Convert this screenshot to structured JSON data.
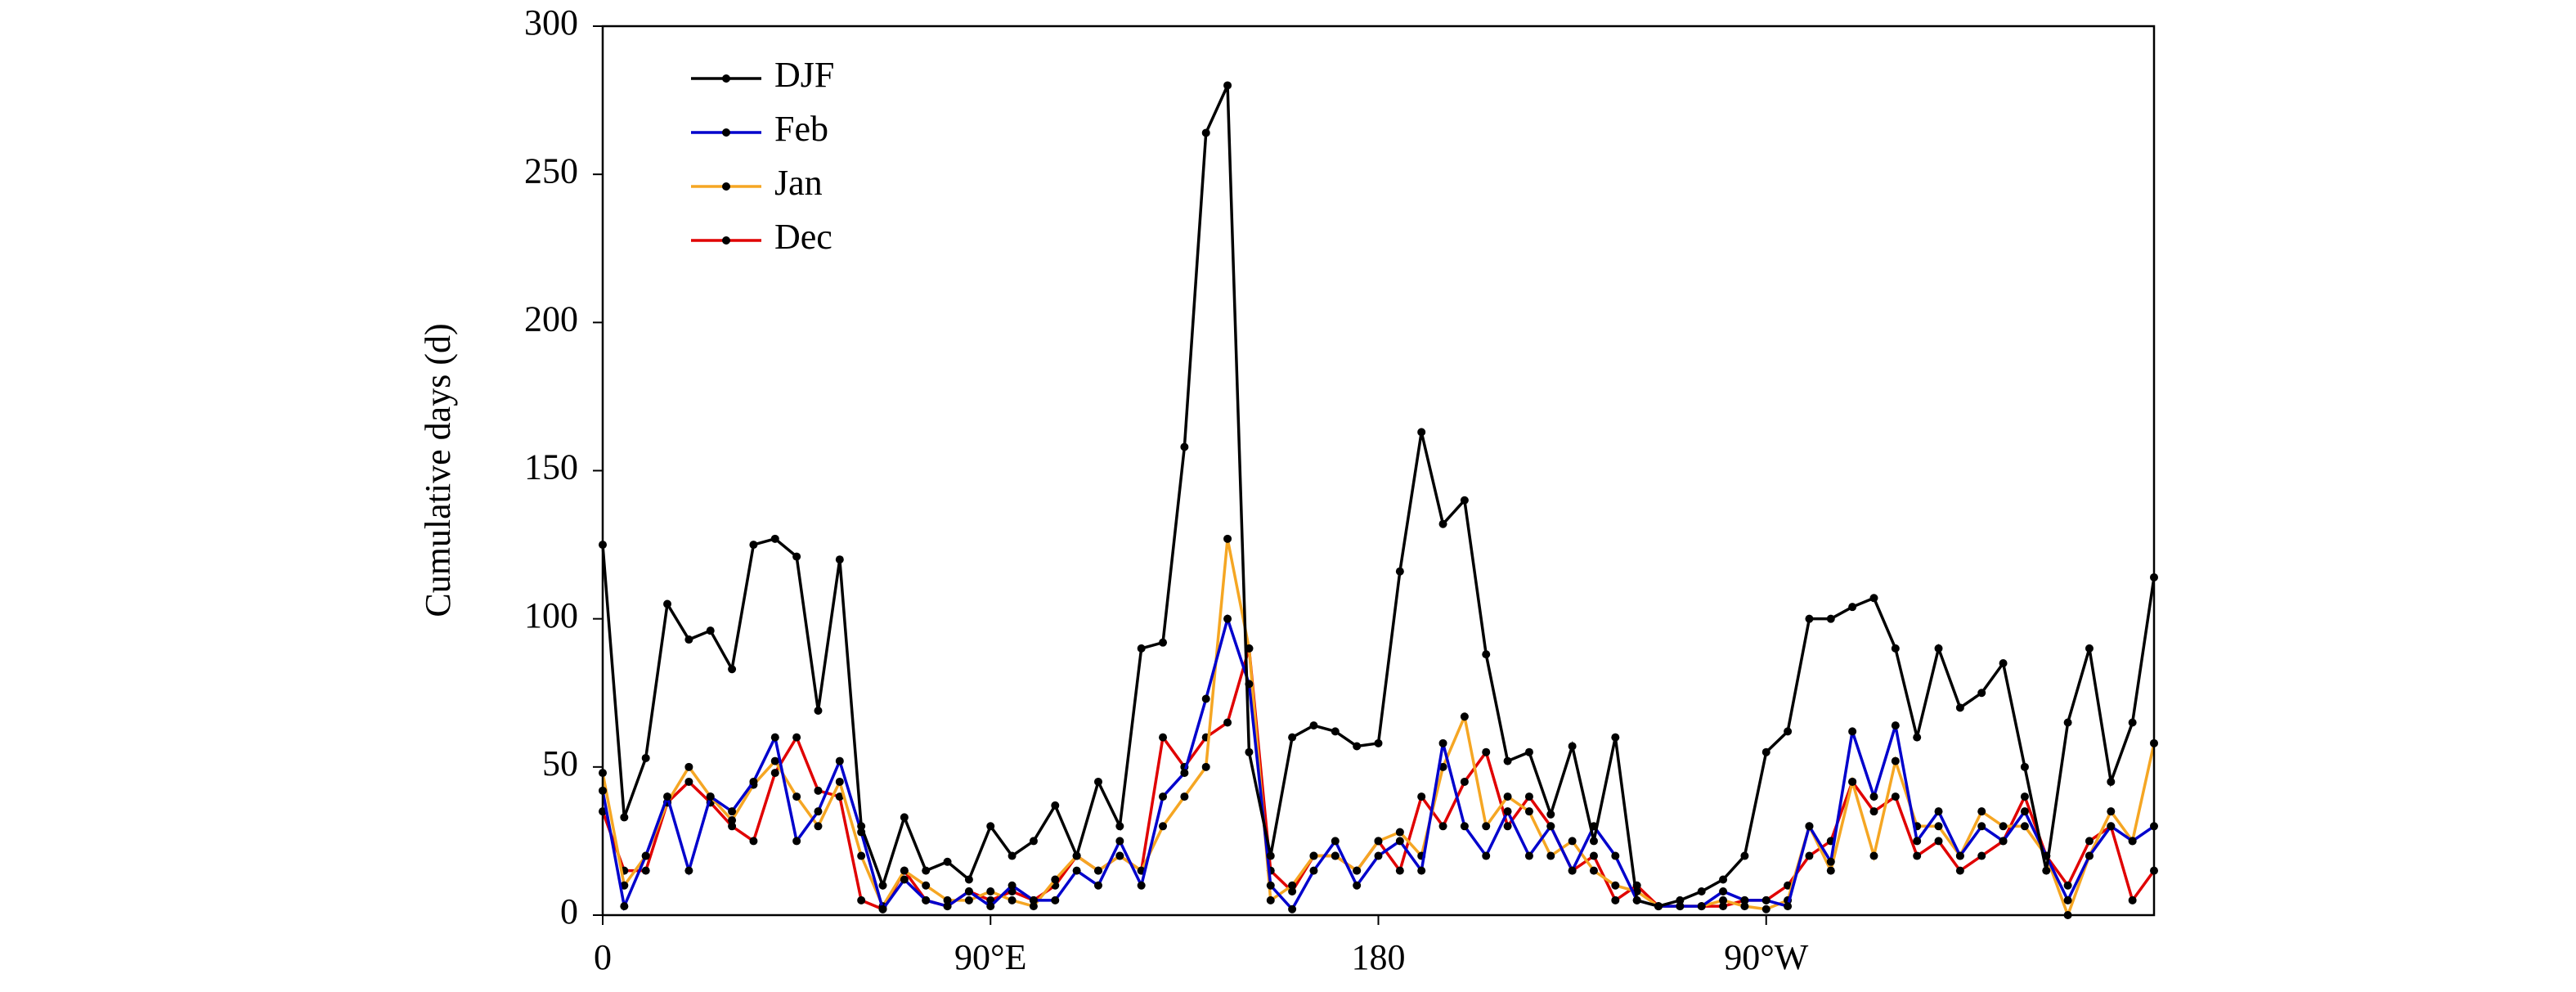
{
  "chart_data": {
    "type": "line",
    "ylabel": "Cumulative days (d)",
    "x": [
      0,
      5,
      10,
      15,
      20,
      25,
      30,
      35,
      40,
      45,
      50,
      55,
      60,
      65,
      70,
      75,
      80,
      85,
      90,
      95,
      100,
      105,
      110,
      115,
      120,
      125,
      130,
      135,
      140,
      145,
      150,
      155,
      160,
      165,
      170,
      175,
      180,
      185,
      190,
      195,
      200,
      205,
      210,
      215,
      220,
      225,
      230,
      235,
      240,
      245,
      250,
      255,
      260,
      265,
      270,
      275,
      280,
      285,
      290,
      295,
      300,
      305,
      310,
      315,
      320,
      325,
      330,
      335,
      340,
      345,
      350,
      355,
      360
    ],
    "series": [
      {
        "name": "DJF",
        "color": "#000000",
        "values": [
          125,
          33,
          53,
          105,
          93,
          96,
          83,
          125,
          127,
          121,
          69,
          120,
          30,
          10,
          33,
          15,
          18,
          12,
          30,
          20,
          25,
          37,
          20,
          45,
          30,
          90,
          92,
          158,
          264,
          280,
          55,
          20,
          60,
          64,
          62,
          57,
          58,
          116,
          163,
          132,
          140,
          88,
          52,
          55,
          34,
          57,
          25,
          60,
          5,
          3,
          5,
          8,
          12,
          20,
          55,
          62,
          100,
          100,
          104,
          107,
          90,
          60,
          90,
          70,
          75,
          85,
          50,
          15,
          65,
          90,
          45,
          65,
          114
        ]
      },
      {
        "name": "Feb",
        "color": "#0000cc",
        "values": [
          42,
          3,
          20,
          40,
          15,
          40,
          35,
          45,
          60,
          25,
          35,
          52,
          28,
          2,
          12,
          5,
          3,
          8,
          3,
          10,
          5,
          5,
          15,
          10,
          25,
          10,
          40,
          48,
          73,
          100,
          78,
          10,
          2,
          15,
          25,
          10,
          20,
          25,
          15,
          58,
          30,
          20,
          35,
          20,
          30,
          15,
          30,
          20,
          5,
          3,
          3,
          3,
          8,
          5,
          5,
          3,
          30,
          18,
          62,
          40,
          64,
          25,
          35,
          20,
          30,
          25,
          35,
          20,
          5,
          20,
          30,
          25,
          30
        ]
      },
      {
        "name": "Jan",
        "color": "#f5a623",
        "values": [
          48,
          10,
          20,
          38,
          50,
          40,
          32,
          44,
          52,
          40,
          30,
          45,
          20,
          3,
          15,
          10,
          5,
          5,
          8,
          5,
          3,
          12,
          20,
          15,
          20,
          15,
          30,
          40,
          50,
          127,
          90,
          5,
          10,
          20,
          20,
          15,
          25,
          28,
          20,
          50,
          67,
          30,
          40,
          35,
          20,
          25,
          15,
          10,
          8,
          3,
          3,
          3,
          5,
          3,
          2,
          5,
          30,
          15,
          45,
          20,
          52,
          30,
          30,
          20,
          35,
          30,
          30,
          20,
          0,
          20,
          35,
          25,
          58
        ]
      },
      {
        "name": "Dec",
        "color": "#e00000",
        "values": [
          35,
          15,
          15,
          38,
          45,
          38,
          30,
          25,
          48,
          60,
          42,
          40,
          5,
          2,
          15,
          5,
          3,
          8,
          5,
          8,
          5,
          10,
          20,
          15,
          20,
          15,
          60,
          50,
          60,
          65,
          90,
          15,
          8,
          20,
          20,
          15,
          25,
          15,
          40,
          30,
          45,
          55,
          30,
          40,
          30,
          15,
          20,
          5,
          10,
          3,
          3,
          3,
          3,
          5,
          5,
          10,
          20,
          25,
          45,
          35,
          40,
          20,
          25,
          15,
          20,
          25,
          40,
          20,
          10,
          25,
          30,
          5,
          15
        ]
      }
    ],
    "xlim": [
      0,
      360
    ],
    "xticks": [
      0,
      {
        "value": 90,
        "label": "90°E"
      },
      180,
      {
        "value": 270,
        "label": "90°W"
      }
    ],
    "ylim": [
      0,
      300
    ],
    "yticks": [
      0,
      50,
      100,
      150,
      200,
      250,
      300
    ],
    "legend": "upper left",
    "marker_color": "#000000"
  }
}
